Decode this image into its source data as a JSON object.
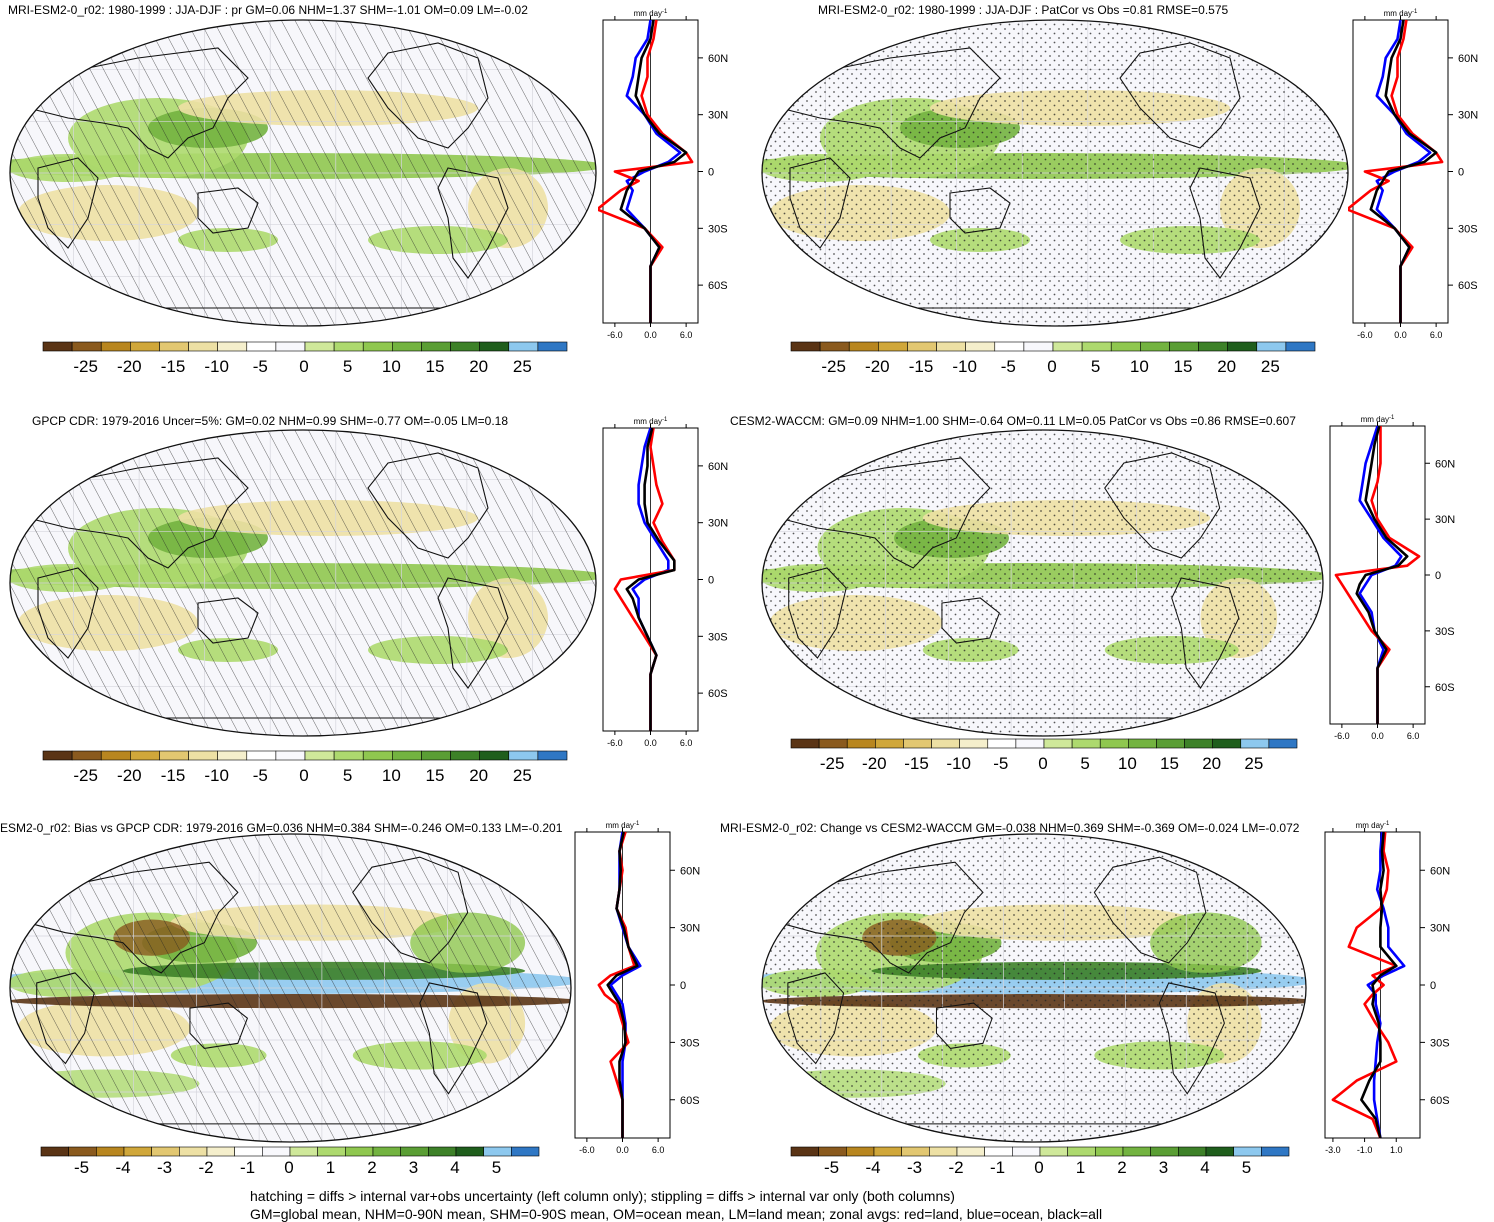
{
  "figure": {
    "units_label": "mm day",
    "units_exponent": "-1",
    "lat_ticks": [
      "60N",
      "30N",
      "0",
      "30S",
      "60S"
    ],
    "colors": {
      "land": "#ff0000",
      "ocean": "#0000ff",
      "all": "#000000"
    },
    "palette": [
      "#5a3415",
      "#8a5a1e",
      "#b8861f",
      "#d0a73a",
      "#e2c771",
      "#ede0a4",
      "#f5efcc",
      "#ffffff",
      "#f8f8fc",
      "#cfe89a",
      "#add96e",
      "#8fc74f",
      "#73b340",
      "#5a9e34",
      "#3d8128",
      "#1f5e1c",
      "#8dc8ee",
      "#2f77c4"
    ],
    "footnote_lines": [
      "hatching = diffs > internal var+obs uncertainty (left column only); stippling = diffs > internal var only (both columns)",
      "GM=global mean, NHM=0-90N mean, SHM=0-90S mean, OM=ocean mean, LM=land mean; zonal avgs: red=land, blue=ocean, black=all"
    ]
  },
  "panels": [
    {
      "title": "MRI-ESM2-0_r02: 1980-1999 : JJA-DJF : pr GM=0.06 NHM=1.37 SHM=-1.01 OM=0.09 LM=-0.02",
      "colorbar_ticks": [
        "-25",
        "-20",
        "-15",
        "-10",
        "-5",
        "0",
        "5",
        "10",
        "15",
        "20",
        "25"
      ],
      "zonal_xticks": [
        "-6.0",
        "0.0",
        "6.0"
      ],
      "pattern": "hatch"
    },
    {
      "title": "MRI-ESM2-0_r02: 1980-1999 : JJA-DJF : PatCor vs Obs =0.81 RMSE=0.575",
      "colorbar_ticks": [
        "-25",
        "-20",
        "-15",
        "-10",
        "-5",
        "0",
        "5",
        "10",
        "15",
        "20",
        "25"
      ],
      "zonal_xticks": [
        "-6.0",
        "0.0",
        "6.0"
      ],
      "pattern": "stipple"
    },
    {
      "title": "GPCP CDR: 1979-2016 Uncer=5%: GM=0.02 NHM=0.99 SHM=-0.77 OM=-0.05 LM=0.18",
      "colorbar_ticks": [
        "-25",
        "-20",
        "-15",
        "-10",
        "-5",
        "0",
        "5",
        "10",
        "15",
        "20",
        "25"
      ],
      "zonal_xticks": [
        "-6.0",
        "0.0",
        "6.0"
      ],
      "pattern": "hatch"
    },
    {
      "title": "CESM2-WACCM: GM=0.09 NHM=1.00 SHM=-0.64 OM=0.11 LM=0.05 PatCor vs Obs =0.86 RMSE=0.607",
      "colorbar_ticks": [
        "-25",
        "-20",
        "-15",
        "-10",
        "-5",
        "0",
        "5",
        "10",
        "15",
        "20",
        "25"
      ],
      "zonal_xticks": [
        "-6.0",
        "0.0",
        "6.0"
      ],
      "pattern": "stipple"
    },
    {
      "title": "ESM2-0_r02: Bias vs GPCP CDR: 1979-2016 GM=0.036 NHM=0.384 SHM=-0.246 OM=0.133 LM=-0.201",
      "colorbar_ticks": [
        "-5",
        "-4",
        "-3",
        "-2",
        "-1",
        "0",
        "1",
        "2",
        "3",
        "4",
        "5"
      ],
      "zonal_xticks": [
        "-6.0",
        "0.0",
        "6.0"
      ],
      "pattern": "hatch"
    },
    {
      "title": "MRI-ESM2-0_r02: Change vs CESM2-WACCM GM=-0.038 NHM=0.369 SHM=-0.369 OM=-0.024 LM=-0.072",
      "colorbar_ticks": [
        "-5",
        "-4",
        "-3",
        "-2",
        "-1",
        "0",
        "1",
        "2",
        "3",
        "4",
        "5"
      ],
      "zonal_xticks": [
        "-3.0",
        "-1.0",
        "1.0"
      ],
      "pattern": "stipple"
    }
  ],
  "chart_data": [
    {
      "type": "line",
      "title": "MRI-ESM2-0_r02: 1980-1999 : JJA-DJF : pr GM=0.06 NHM=1.37 SHM=-1.01 OM=0.09 LM=-0.02",
      "xlabel": "mm day-1",
      "xlim": [
        -8,
        8
      ],
      "ylim": [
        -80,
        80
      ],
      "y": [
        80,
        70,
        60,
        50,
        40,
        30,
        20,
        10,
        5,
        0,
        -5,
        -10,
        -20,
        -30,
        -40,
        -50,
        -60,
        -70,
        -80
      ],
      "series": [
        {
          "name": "land",
          "values": [
            1,
            0.5,
            -0.5,
            -0.5,
            -1.5,
            -0.5,
            2,
            6,
            7,
            -6,
            -2,
            -5,
            -9,
            -1,
            2,
            0,
            0,
            0,
            0
          ]
        },
        {
          "name": "ocean",
          "values": [
            0,
            -0.5,
            -2.5,
            -3,
            -4,
            -1,
            1,
            5,
            3,
            -1,
            -4,
            -3,
            -4,
            -1,
            1.5,
            0,
            0,
            0,
            0
          ]
        },
        {
          "name": "all",
          "values": [
            0.5,
            0,
            -1.5,
            -2,
            -2.5,
            -1,
            1.5,
            6,
            4,
            -2,
            -3,
            -4,
            -5,
            -1,
            1.5,
            0,
            0,
            0,
            0
          ]
        }
      ]
    },
    {
      "type": "line",
      "title": "MRI-ESM2-0_r02: 1980-1999 : JJA-DJF : PatCor vs Obs =0.81 RMSE=0.575",
      "xlabel": "mm day-1",
      "xlim": [
        -8,
        8
      ],
      "ylim": [
        -80,
        80
      ],
      "y": [
        80,
        70,
        60,
        50,
        40,
        30,
        20,
        10,
        5,
        0,
        -5,
        -10,
        -20,
        -30,
        -40,
        -50,
        -60,
        -70,
        -80
      ],
      "series": [
        {
          "name": "land",
          "values": [
            1,
            0.5,
            -0.5,
            -0.5,
            -1.5,
            -0.5,
            2,
            6,
            7,
            -6,
            -2,
            -5,
            -9,
            -1,
            2,
            0,
            0,
            0,
            0
          ]
        },
        {
          "name": "ocean",
          "values": [
            0,
            -0.5,
            -2.5,
            -3,
            -4,
            -1,
            1,
            5,
            3,
            -1,
            -4,
            -3,
            -4,
            -1,
            1.5,
            0,
            0,
            0,
            0
          ]
        },
        {
          "name": "all",
          "values": [
            0.5,
            0,
            -1.5,
            -2,
            -2.5,
            -1,
            1.5,
            6,
            4,
            -2,
            -3,
            -4,
            -5,
            -1,
            1.5,
            0,
            0,
            0,
            0
          ]
        }
      ]
    },
    {
      "type": "line",
      "title": "GPCP CDR: 1979-2016 Uncer=5%: GM=0.02 NHM=0.99 SHM=-0.77 OM=-0.05 LM=0.18",
      "xlabel": "mm day-1",
      "xlim": [
        -8,
        8
      ],
      "ylim": [
        -80,
        80
      ],
      "y": [
        80,
        70,
        60,
        50,
        40,
        30,
        20,
        10,
        5,
        0,
        -5,
        -10,
        -20,
        -30,
        -40,
        -50,
        -60,
        -70,
        -80
      ],
      "series": [
        {
          "name": "land",
          "values": [
            0.5,
            0,
            0.5,
            1,
            2,
            0.5,
            2,
            4,
            4,
            -5,
            -6,
            -5,
            -3,
            -1,
            1,
            0,
            0,
            0,
            0
          ]
        },
        {
          "name": "ocean",
          "values": [
            0,
            -1,
            -1.5,
            -2,
            -2,
            -1,
            1,
            3,
            3,
            -1,
            -3,
            -2,
            -2,
            -0.5,
            1,
            0,
            0,
            0,
            0
          ]
        },
        {
          "name": "all",
          "values": [
            0.3,
            -0.5,
            -0.5,
            -1,
            -1,
            -0.5,
            1.5,
            4,
            4,
            -2,
            -4,
            -3,
            -2,
            -0.5,
            1,
            0,
            0,
            0,
            0
          ]
        }
      ]
    },
    {
      "type": "line",
      "title": "CESM2-WACCM: GM=0.09 NHM=1.00 SHM=-0.64 OM=0.11 LM=0.05 PatCor vs Obs =0.86 RMSE=0.607",
      "xlabel": "mm day-1",
      "xlim": [
        -8,
        8
      ],
      "ylim": [
        -80,
        80
      ],
      "y": [
        80,
        70,
        60,
        50,
        40,
        30,
        20,
        10,
        5,
        0,
        -5,
        -10,
        -20,
        -30,
        -40,
        -50,
        -60,
        -70,
        -80
      ],
      "series": [
        {
          "name": "land",
          "values": [
            0.5,
            0.5,
            0.5,
            0,
            -1,
            0,
            2,
            7,
            5,
            -7,
            -6,
            -5,
            -3,
            -1,
            2,
            0,
            0,
            0,
            0
          ]
        },
        {
          "name": "ocean",
          "values": [
            0,
            -1,
            -2,
            -2.5,
            -3,
            -1,
            1,
            4,
            3,
            -1,
            -2,
            -3,
            -1,
            -0.5,
            1,
            0,
            0,
            0,
            0
          ]
        },
        {
          "name": "all",
          "values": [
            0.3,
            -0.5,
            -1,
            -1.5,
            -2,
            -0.5,
            1.5,
            5,
            3.5,
            -2,
            -3,
            -3.5,
            -1.5,
            -0.5,
            1.5,
            0,
            0,
            0,
            0
          ]
        }
      ]
    },
    {
      "type": "line",
      "title": "ESM2-0_r02: Bias vs GPCP CDR: 1979-2016 GM=0.036 NHM=0.384 SHM=-0.246 OM=0.133 LM=-0.201",
      "xlabel": "mm day-1",
      "xlim": [
        -8,
        8
      ],
      "ylim": [
        -80,
        80
      ],
      "y": [
        80,
        70,
        60,
        50,
        40,
        30,
        20,
        10,
        5,
        0,
        -5,
        -10,
        -20,
        -30,
        -40,
        -50,
        -60,
        -70,
        -80
      ],
      "series": [
        {
          "name": "land",
          "values": [
            0.5,
            -0.5,
            0,
            -0.5,
            -1,
            0.5,
            1,
            2,
            -2,
            -4,
            -3,
            -1,
            0,
            1,
            -2,
            -1,
            0,
            0,
            0
          ]
        },
        {
          "name": "ocean",
          "values": [
            0,
            -0.5,
            -0.5,
            -0.5,
            -1,
            0,
            1,
            3,
            0,
            -2,
            -1,
            0,
            0.5,
            0.5,
            0,
            0,
            0,
            0,
            0
          ]
        },
        {
          "name": "all",
          "values": [
            0.2,
            -0.5,
            -0.3,
            -0.5,
            -1,
            0.2,
            1,
            2.5,
            -1,
            -2.5,
            -1.5,
            -0.5,
            0.3,
            0.5,
            -0.5,
            -0.5,
            0,
            0,
            0
          ]
        }
      ]
    },
    {
      "type": "line",
      "title": "MRI-ESM2-0_r02: Change vs CESM2-WACCM GM=-0.038 NHM=0.369 SHM=-0.369 OM=-0.024 LM=-0.072",
      "xlabel": "mm day-1",
      "xlim": [
        -3.5,
        2.5
      ],
      "ylim": [
        -80,
        80
      ],
      "y": [
        80,
        70,
        60,
        50,
        40,
        30,
        20,
        10,
        5,
        0,
        -5,
        -10,
        -20,
        -30,
        -40,
        -50,
        -60,
        -70,
        -80
      ],
      "series": [
        {
          "name": "land",
          "values": [
            0.3,
            0.2,
            0.5,
            0.4,
            0,
            -1.5,
            -2,
            1,
            -0.5,
            0.2,
            -0.5,
            -1,
            -0.3,
            0.5,
            1,
            -1.5,
            -3,
            -0.5,
            0
          ]
        },
        {
          "name": "ocean",
          "values": [
            0.1,
            0,
            0,
            -0.2,
            0.2,
            0.5,
            0.5,
            1.5,
            0.2,
            -0.8,
            -0.3,
            -0.3,
            0,
            -0.2,
            -0.3,
            -0.4,
            -0.4,
            -0.2,
            0
          ]
        },
        {
          "name": "all",
          "values": [
            0.2,
            0.1,
            0.2,
            0,
            0.1,
            0,
            0,
            1,
            0,
            -0.5,
            -0.4,
            -0.5,
            -0.1,
            0,
            0,
            -0.7,
            -1.2,
            -0.3,
            0
          ]
        }
      ]
    }
  ]
}
